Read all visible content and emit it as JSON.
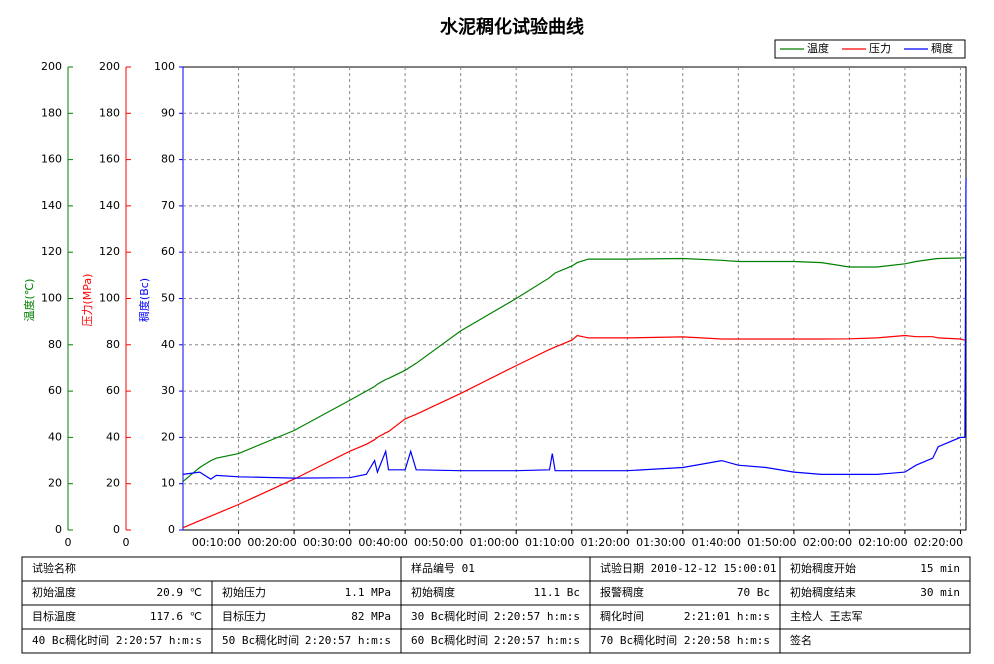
{
  "chart_data": {
    "type": "line",
    "title": "水泥稠化试验曲线",
    "xlim": [
      0,
      141
    ],
    "xticks": [
      {
        "value": 10,
        "label": "00:10:00"
      },
      {
        "value": 20,
        "label": "00:20:00"
      },
      {
        "value": 30,
        "label": "00:30:00"
      },
      {
        "value": 40,
        "label": "00:40:00"
      },
      {
        "value": 50,
        "label": "00:50:00"
      },
      {
        "value": 60,
        "label": "01:00:00"
      },
      {
        "value": 70,
        "label": "01:10:00"
      },
      {
        "value": 80,
        "label": "01:20:00"
      },
      {
        "value": 90,
        "label": "01:30:00"
      },
      {
        "value": 100,
        "label": "01:40:00"
      },
      {
        "value": 110,
        "label": "01:50:00"
      },
      {
        "value": 120,
        "label": "02:00:00"
      },
      {
        "value": 130,
        "label": "02:10:00"
      },
      {
        "value": 140,
        "label": "02:20:00"
      }
    ],
    "grid": true,
    "axes": [
      {
        "label": "温度(℃)",
        "color": "#008000",
        "lim": [
          0,
          200
        ],
        "ticks": [
          0,
          20,
          40,
          60,
          80,
          100,
          120,
          140,
          160,
          180,
          200
        ],
        "base_label": 0
      },
      {
        "label": "压力(MPa)",
        "color": "#ff0000",
        "lim": [
          0,
          200
        ],
        "ticks": [
          0,
          20,
          40,
          60,
          80,
          100,
          120,
          140,
          160,
          180,
          200
        ],
        "base_label": 0
      },
      {
        "label": "稠度(Bc)",
        "color": "#0000ff",
        "lim": [
          0,
          100
        ],
        "ticks": [
          0,
          10,
          20,
          30,
          40,
          50,
          60,
          70,
          80,
          90,
          100
        ]
      }
    ],
    "x": [
      0,
      3,
      5,
      6,
      10,
      20,
      30,
      33,
      34.5,
      35,
      36.5,
      37,
      40,
      41,
      42,
      50,
      60,
      66,
      66.5,
      67,
      70,
      71,
      73,
      80,
      90,
      97,
      100,
      105,
      110,
      115,
      120,
      125,
      130,
      132,
      135,
      136,
      140,
      140.8,
      141
    ],
    "series": [
      {
        "name": "温度",
        "color": "#008000",
        "axis": 0,
        "values": [
          21,
          27,
          30,
          31,
          33,
          43,
          56,
          60,
          62,
          63,
          65,
          65.5,
          69,
          70.5,
          72,
          86,
          100,
          109,
          110,
          111,
          114,
          115.5,
          117,
          117,
          117.3,
          116.5,
          116,
          116,
          116,
          115.5,
          113.6,
          113.6,
          115,
          116,
          117,
          117.3,
          117.5,
          117.6,
          117.6
        ]
      },
      {
        "name": "压力",
        "color": "#ff0000",
        "axis": 1,
        "values": [
          1,
          4,
          6,
          7,
          11,
          22,
          34,
          37,
          39,
          40,
          42,
          42.5,
          48,
          49,
          50,
          59,
          71,
          78,
          78.5,
          79,
          82,
          84,
          83,
          83,
          83.4,
          82.5,
          82.5,
          82.5,
          82.5,
          82.5,
          82.6,
          83,
          84,
          83.5,
          83.5,
          83,
          82.5,
          82,
          82
        ]
      },
      {
        "name": "稠度",
        "color": "#0000ff",
        "axis": 2,
        "values": [
          12,
          12.5,
          11,
          11.8,
          11.5,
          11.2,
          11.3,
          12,
          15,
          12.5,
          17,
          13,
          13,
          17,
          13,
          12.8,
          12.8,
          13,
          16.5,
          12.8,
          12.8,
          12.8,
          12.8,
          12.8,
          13.5,
          15,
          14,
          13.5,
          12.5,
          12,
          12,
          12,
          12.5,
          14,
          15.5,
          18,
          20,
          20,
          76
        ]
      }
    ]
  },
  "table": {
    "rows": [
      [
        {
          "text": "试验名称"
        },
        {
          "text": "样品编号 01"
        },
        {
          "text": "试验日期 2010-12-12 15:00:01"
        },
        {
          "label": "初始稠度开始",
          "value": "15 min"
        }
      ],
      [
        {
          "label": "初始温度",
          "value": "20.9 ℃"
        },
        {
          "label": "初始压力",
          "value": "1.1 MPa"
        },
        {
          "label": "初始稠度",
          "value": "11.1 Bc"
        },
        {
          "label": "报警稠度",
          "value": "70 Bc"
        },
        {
          "label": "初始稠度结束",
          "value": "30 min"
        }
      ],
      [
        {
          "label": "目标温度",
          "value": "117.6 ℃"
        },
        {
          "label": "目标压力",
          "value": "82 MPa"
        },
        {
          "label": "30 Bc稠化时间",
          "value": "2:20:57 h:m:s"
        },
        {
          "label": "稠化时间",
          "value": "2:21:01 h:m:s"
        },
        {
          "text": "主检人 王志军"
        }
      ],
      [
        {
          "label": "40 Bc稠化时间",
          "value": "2:20:57 h:m:s"
        },
        {
          "label": "50 Bc稠化时间",
          "value": "2:20:57 h:m:s"
        },
        {
          "label": "60 Bc稠化时间",
          "value": "2:20:57 h:m:s"
        },
        {
          "label": "70 Bc稠化时间",
          "value": "2:20:58 h:m:s"
        },
        {
          "text": "签名"
        }
      ]
    ]
  }
}
